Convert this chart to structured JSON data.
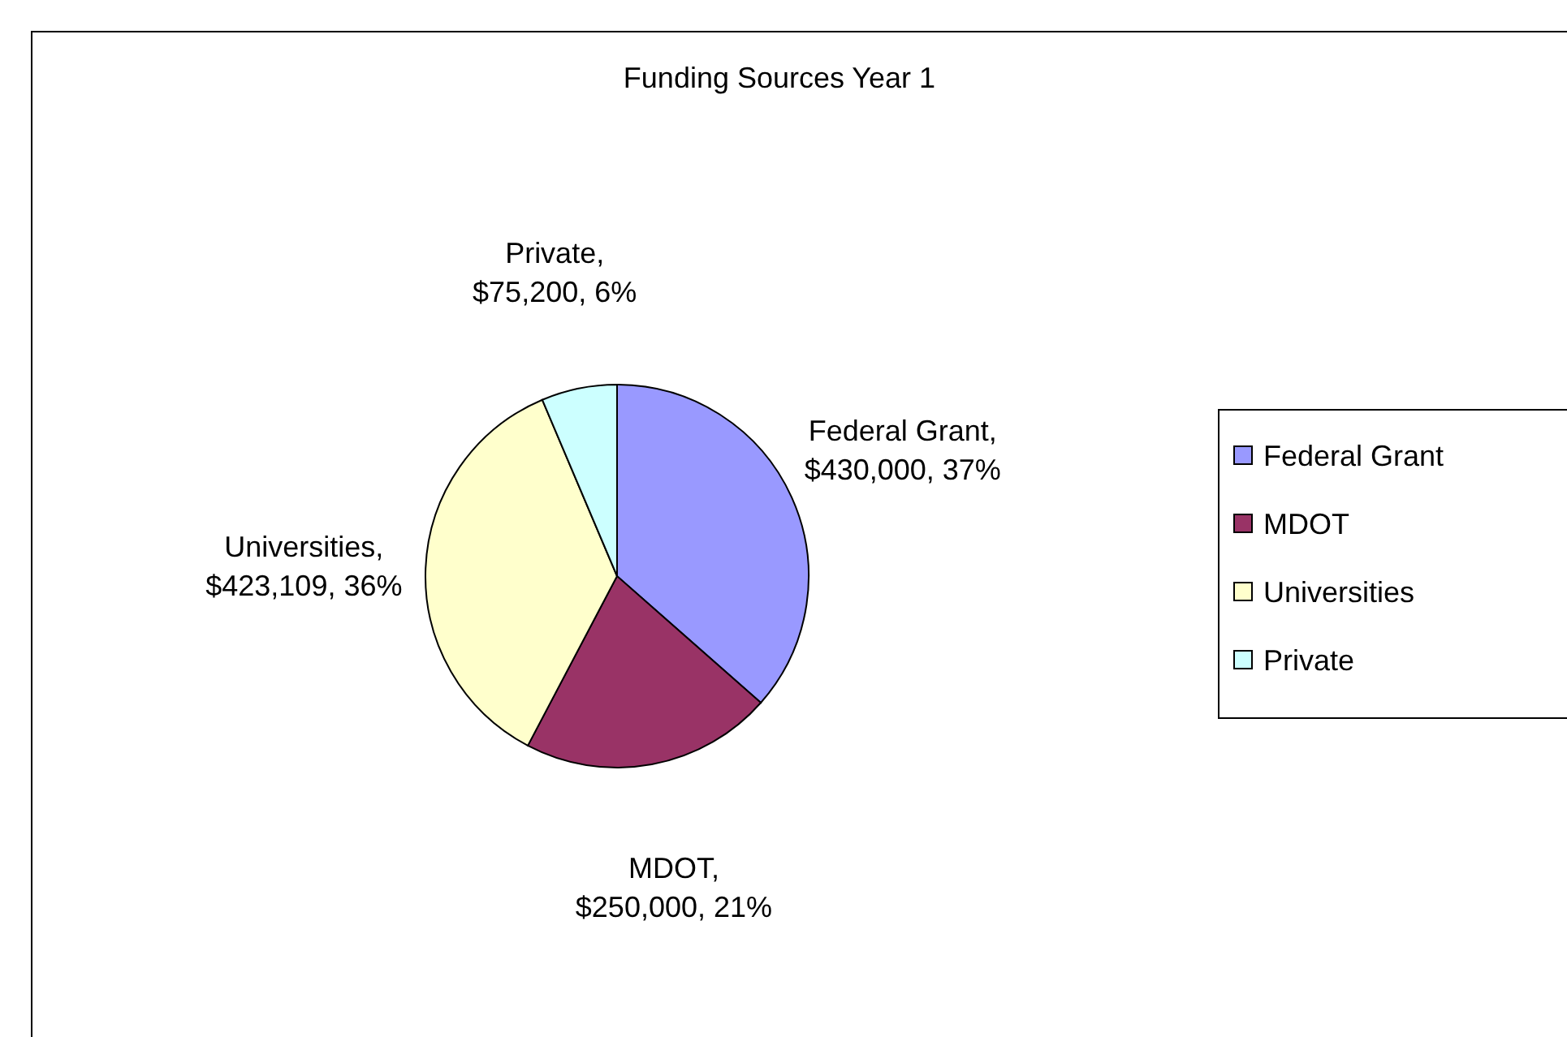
{
  "chart_data": {
    "type": "pie",
    "title": "Funding Sources Year 1",
    "categories": [
      "Federal Grant",
      "MDOT",
      "Universities",
      "Private"
    ],
    "values": [
      430000,
      250000,
      423109,
      75200
    ],
    "colors": [
      "#9999ff",
      "#993366",
      "#ffffcc",
      "#ccffff"
    ],
    "value_labels": [
      "Federal Grant, $430,000, 37%",
      "MDOT, $250,000, 21%",
      "Universities, $423,109, 36%",
      "Private, $75,200, 6%"
    ],
    "legend": "right"
  }
}
